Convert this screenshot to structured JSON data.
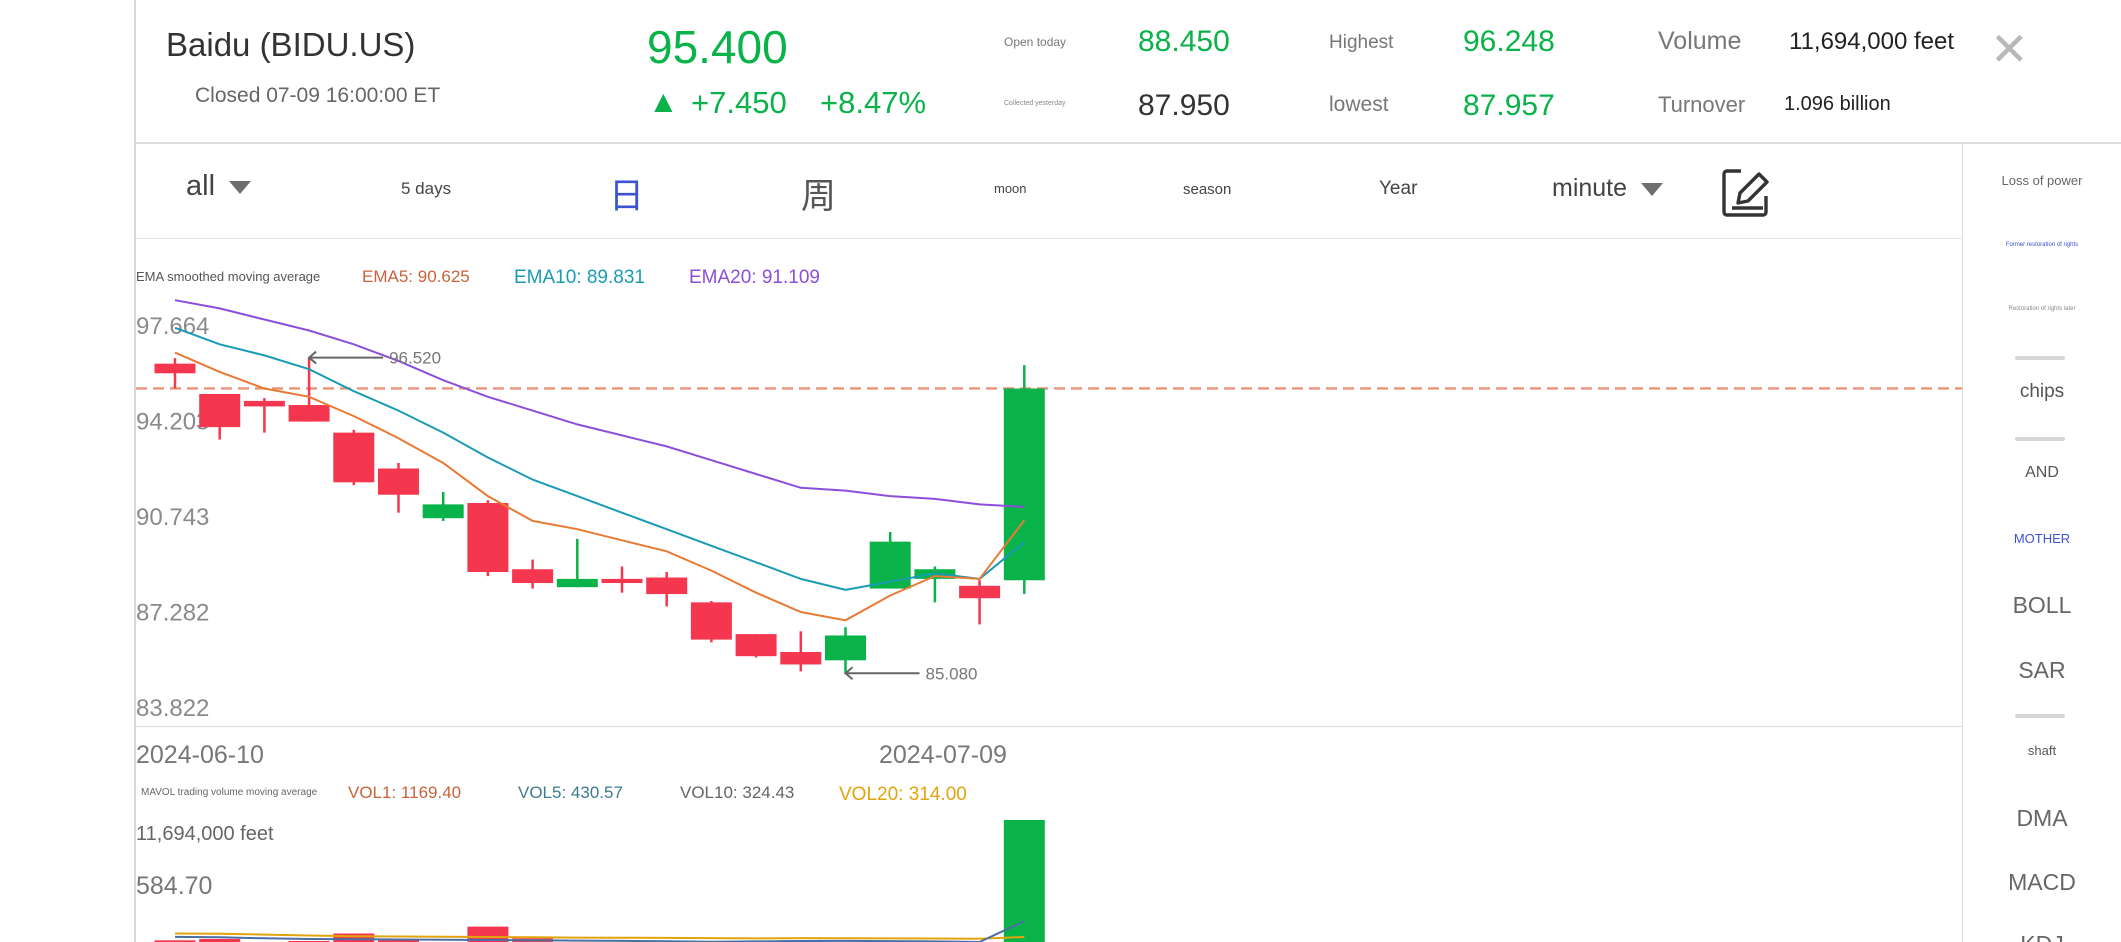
{
  "stock": {
    "name": "Baidu (BIDU.US)",
    "status": "Closed 07-09 16:00:00 ET",
    "price": "95.400",
    "change_arrow": "▲",
    "change": "+7.450",
    "change_pct": "+8.47%",
    "open_label": "Open today",
    "open_value": "88.450",
    "prev_close_label": "Collected yesterday",
    "prev_close_value": "87.950",
    "high_label": "Highest",
    "high_value": "96.248",
    "low_label": "lowest",
    "low_value": "87.957",
    "volume_label": "Volume",
    "volume_value": "11,694,000 feet",
    "turnover_label": "Turnover",
    "turnover_value": "1.096 billion",
    "close_glyph": "✕"
  },
  "periods": {
    "all": "all",
    "five_days": "5 days",
    "day": "日",
    "week": "周",
    "month": "moon",
    "season": "season",
    "year": "Year",
    "minute": "minute"
  },
  "sidebar": {
    "power": "Loss of power",
    "former": "Former restoration of rights",
    "later": "Restoration of rights later",
    "chips": "chips",
    "and": "AND",
    "mother": "MOTHER",
    "boll": "BOLL",
    "sar": "SAR",
    "shaft": "shaft",
    "dma": "DMA",
    "macd": "MACD",
    "kdj": "KDJ"
  },
  "colors": {
    "up": "#0ab24a",
    "down": "#f5364f",
    "ema5": "#e87a35",
    "ema10": "#1a9bb5",
    "ema20": "#8d4ed9",
    "vol20": "#e2a40c",
    "accent": "#3b52d3",
    "reference_line": "#e99377"
  },
  "chart_data": [
    {
      "type": "candlestick",
      "title": "EMA smoothed moving average",
      "legend": [
        {
          "name": "EMA5",
          "text": "EMA5: 90.625",
          "color": "#e87a35"
        },
        {
          "name": "EMA10",
          "text": "EMA10: 89.831",
          "color": "#1a9bb5"
        },
        {
          "name": "EMA20",
          "text": "EMA20: 91.109",
          "color": "#8d4ed9"
        }
      ],
      "y_ticks": [
        "97.664",
        "94.203",
        "90.743",
        "87.282",
        "83.822"
      ],
      "ylim": [
        83.822,
        97.664
      ],
      "x_labels": [
        "2024-06-10",
        "2024-07-09"
      ],
      "annotations": [
        {
          "text": "96.520",
          "value": 96.52,
          "candle": 3
        },
        {
          "text": "85.080",
          "value": 85.08,
          "candle": 15
        }
      ],
      "reference_value": 95.4,
      "candles": [
        {
          "open": 96.3,
          "close": 95.95,
          "high": 96.5,
          "low": 95.4,
          "dir": "down"
        },
        {
          "open": 95.2,
          "close": 94.0,
          "high": 95.2,
          "low": 93.55,
          "dir": "down"
        },
        {
          "open": 94.95,
          "close": 94.75,
          "high": 95.05,
          "low": 93.8,
          "dir": "down"
        },
        {
          "open": 94.8,
          "close": 94.2,
          "high": 96.52,
          "low": 94.2,
          "dir": "down"
        },
        {
          "open": 93.8,
          "close": 92.0,
          "high": 93.9,
          "low": 91.9,
          "dir": "down"
        },
        {
          "open": 92.5,
          "close": 91.55,
          "high": 92.7,
          "low": 90.9,
          "dir": "down"
        },
        {
          "open": 90.7,
          "close": 91.2,
          "high": 91.65,
          "low": 90.6,
          "dir": "up"
        },
        {
          "open": 91.25,
          "close": 88.75,
          "high": 91.35,
          "low": 88.6,
          "dir": "down"
        },
        {
          "open": 88.85,
          "close": 88.35,
          "high": 89.2,
          "low": 88.15,
          "dir": "down"
        },
        {
          "open": 88.2,
          "close": 88.5,
          "high": 89.95,
          "low": 88.2,
          "dir": "up"
        },
        {
          "open": 88.5,
          "close": 88.35,
          "high": 88.95,
          "low": 88.0,
          "dir": "down"
        },
        {
          "open": 88.55,
          "close": 87.95,
          "high": 88.75,
          "low": 87.5,
          "dir": "down"
        },
        {
          "open": 87.65,
          "close": 86.3,
          "high": 87.7,
          "low": 86.2,
          "dir": "down"
        },
        {
          "open": 86.5,
          "close": 85.7,
          "high": 86.5,
          "low": 85.65,
          "dir": "down"
        },
        {
          "open": 85.85,
          "close": 85.4,
          "high": 86.6,
          "low": 85.15,
          "dir": "down"
        },
        {
          "open": 85.55,
          "close": 86.45,
          "high": 86.75,
          "low": 85.08,
          "dir": "up"
        },
        {
          "open": 88.15,
          "close": 89.85,
          "high": 90.2,
          "low": 88.15,
          "dir": "up"
        },
        {
          "open": 88.5,
          "close": 88.85,
          "high": 88.95,
          "low": 87.65,
          "dir": "up"
        },
        {
          "open": 88.25,
          "close": 87.8,
          "high": 88.45,
          "low": 86.85,
          "dir": "down"
        },
        {
          "open": 88.45,
          "close": 95.4,
          "high": 96.248,
          "low": 87.957,
          "dir": "up"
        }
      ],
      "ema5": [
        96.7,
        96.0,
        95.4,
        95.1,
        94.4,
        93.6,
        92.7,
        91.5,
        90.6,
        90.3,
        89.9,
        89.5,
        88.8,
        88.0,
        87.3,
        87.0,
        87.9,
        88.6,
        88.5,
        90.625
      ],
      "ema10": [
        97.6,
        97.0,
        96.6,
        96.1,
        95.3,
        94.6,
        93.8,
        92.9,
        92.1,
        91.5,
        90.9,
        90.3,
        89.7,
        89.1,
        88.5,
        88.1,
        88.4,
        88.7,
        88.5,
        89.831
      ],
      "ema20": [
        98.6,
        98.3,
        97.9,
        97.5,
        97.0,
        96.4,
        95.7,
        95.1,
        94.6,
        94.1,
        93.7,
        93.3,
        92.8,
        92.3,
        91.8,
        91.7,
        91.5,
        91.4,
        91.2,
        91.109
      ]
    },
    {
      "type": "bar",
      "title": "MAVOL trading volume moving average",
      "legend": [
        {
          "name": "VOL1",
          "text": "VOL1: 1169.40",
          "color": "#c8623a"
        },
        {
          "name": "VOL5",
          "text": "VOL5: 430.57",
          "color": "#3e7b8d"
        },
        {
          "name": "VOL10",
          "text": "VOL10: 324.43",
          "color": "#666666"
        },
        {
          "name": "VOL20",
          "text": "VOL20: 314.00",
          "color": "#e2a40c"
        }
      ],
      "y_labels": [
        "11,694,000 feet",
        "584.70"
      ],
      "values": [
        290,
        300,
        250,
        285,
        340,
        290,
        250,
        390,
        305,
        240,
        210,
        180,
        225,
        240,
        290,
        250,
        230,
        205,
        235,
        1169.4
      ],
      "vol5": [
        315,
        312,
        305,
        300,
        298,
        296,
        294,
        292,
        290,
        288,
        286,
        283,
        280,
        282,
        285,
        286,
        284,
        282,
        278,
        430.57
      ],
      "vol20": [
        340,
        338,
        332,
        325,
        320,
        318,
        316,
        314,
        312,
        310,
        309,
        308,
        306,
        304,
        306,
        305,
        304,
        303,
        302,
        314.0
      ]
    }
  ]
}
